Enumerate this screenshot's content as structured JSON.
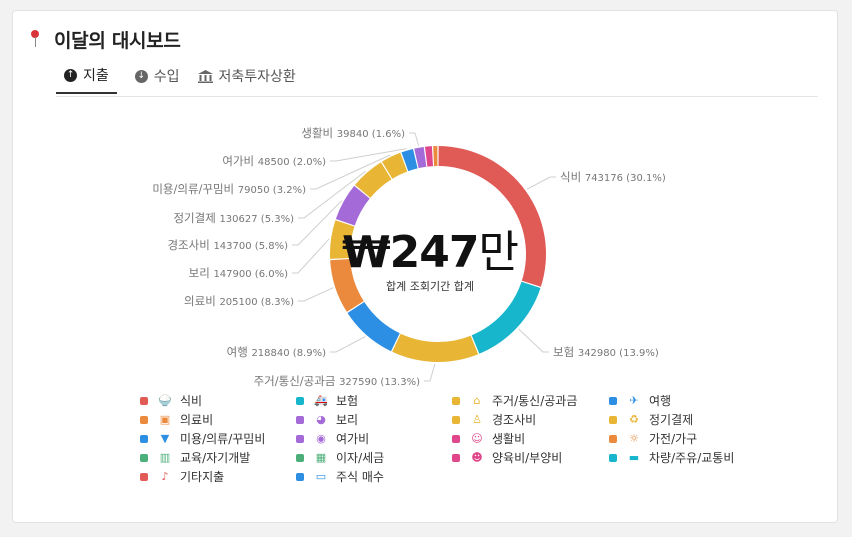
{
  "header": {
    "title": "이달의 대시보드"
  },
  "tabs": [
    {
      "label": "지출",
      "icon": "arrow-up-circle-icon",
      "active": true
    },
    {
      "label": "수입",
      "icon": "arrow-down-circle-icon",
      "active": false
    },
    {
      "label": "저축투자상환",
      "icon": "bank-icon",
      "active": false
    }
  ],
  "center": {
    "amount": "₩247",
    "unit": "만",
    "caption": "합계 조회기간 합계"
  },
  "chart_data": {
    "type": "pie",
    "donut": true,
    "slices": [
      {
        "name": "식비",
        "value": 743176,
        "pct": "30.1%",
        "color": "#e05a56"
      },
      {
        "name": "보험",
        "value": 342980,
        "pct": "13.9%",
        "color": "#17b6cc"
      },
      {
        "name": "주거/통신/공과금",
        "value": 327590,
        "pct": "13.3%",
        "color": "#e8b535"
      },
      {
        "name": "여행",
        "value": 218840,
        "pct": "8.9%",
        "color": "#2c8fe3"
      },
      {
        "name": "의료비",
        "value": 205100,
        "pct": "8.3%",
        "color": "#eb8a3c"
      },
      {
        "name": "보리",
        "value": 147900,
        "pct": "6.0%",
        "color": "#e8b535"
      },
      {
        "name": "경조사비",
        "value": 143700,
        "pct": "5.8%",
        "color": "#a46bd8"
      },
      {
        "name": "정기결제",
        "value": 130627,
        "pct": "5.3%",
        "color": "#e8b535"
      },
      {
        "name": "미용/의류/꾸밈비",
        "value": 79050,
        "pct": "3.2%",
        "color": "#e8b535"
      },
      {
        "name": "여가비",
        "value": 48500,
        "pct": "2.0%",
        "color": "#2c8fe3"
      },
      {
        "name": "생활비",
        "value": 39840,
        "pct": "1.6%",
        "color": "#a46bd8"
      },
      {
        "name": "",
        "value": 30000,
        "pct": "",
        "color": "#e0468a"
      },
      {
        "name": "",
        "value": 20000,
        "pct": "",
        "color": "#eb8a3c"
      }
    ]
  },
  "legend": [
    {
      "label": "식비",
      "color": "#e05a56",
      "icon": "rice-bowl-icon"
    },
    {
      "label": "보험",
      "color": "#17b6cc",
      "icon": "ambulance-icon"
    },
    {
      "label": "주거/통신/공과금",
      "color": "#e8b535",
      "icon": "house-icon"
    },
    {
      "label": "여행",
      "color": "#2c8fe3",
      "icon": "airplane-icon"
    },
    {
      "label": "의료비",
      "color": "#eb8a3c",
      "icon": "pill-icon"
    },
    {
      "label": "보리",
      "color": "#a46bd8",
      "icon": "dog-icon"
    },
    {
      "label": "경조사비",
      "color": "#e8b535",
      "icon": "person-suit-icon"
    },
    {
      "label": "정기결제",
      "color": "#e8b535",
      "icon": "recycle-icon"
    },
    {
      "label": "미용/의류/꾸밈비",
      "color": "#2c8fe3",
      "icon": "shirt-icon"
    },
    {
      "label": "여가비",
      "color": "#a46bd8",
      "icon": "joystick-icon"
    },
    {
      "label": "생활비",
      "color": "#e0468a",
      "icon": "grandpa-icon"
    },
    {
      "label": "가전/가구",
      "color": "#eb8a3c",
      "icon": "lightbulb-icon"
    },
    {
      "label": "교육/자기개발",
      "color": "#4caf7a",
      "icon": "books-icon"
    },
    {
      "label": "이자/세금",
      "color": "#4caf7a",
      "icon": "building-icon"
    },
    {
      "label": "양육비/부양비",
      "color": "#e0468a",
      "icon": "baby-icon"
    },
    {
      "label": "차량/주유/교통비",
      "color": "#17b6cc",
      "icon": "car-icon"
    },
    {
      "label": "기타지출",
      "color": "#e05a56",
      "icon": "saxophone-icon"
    },
    {
      "label": "주식 매수",
      "color": "#2c8fe3",
      "icon": "ticket-icon"
    }
  ]
}
